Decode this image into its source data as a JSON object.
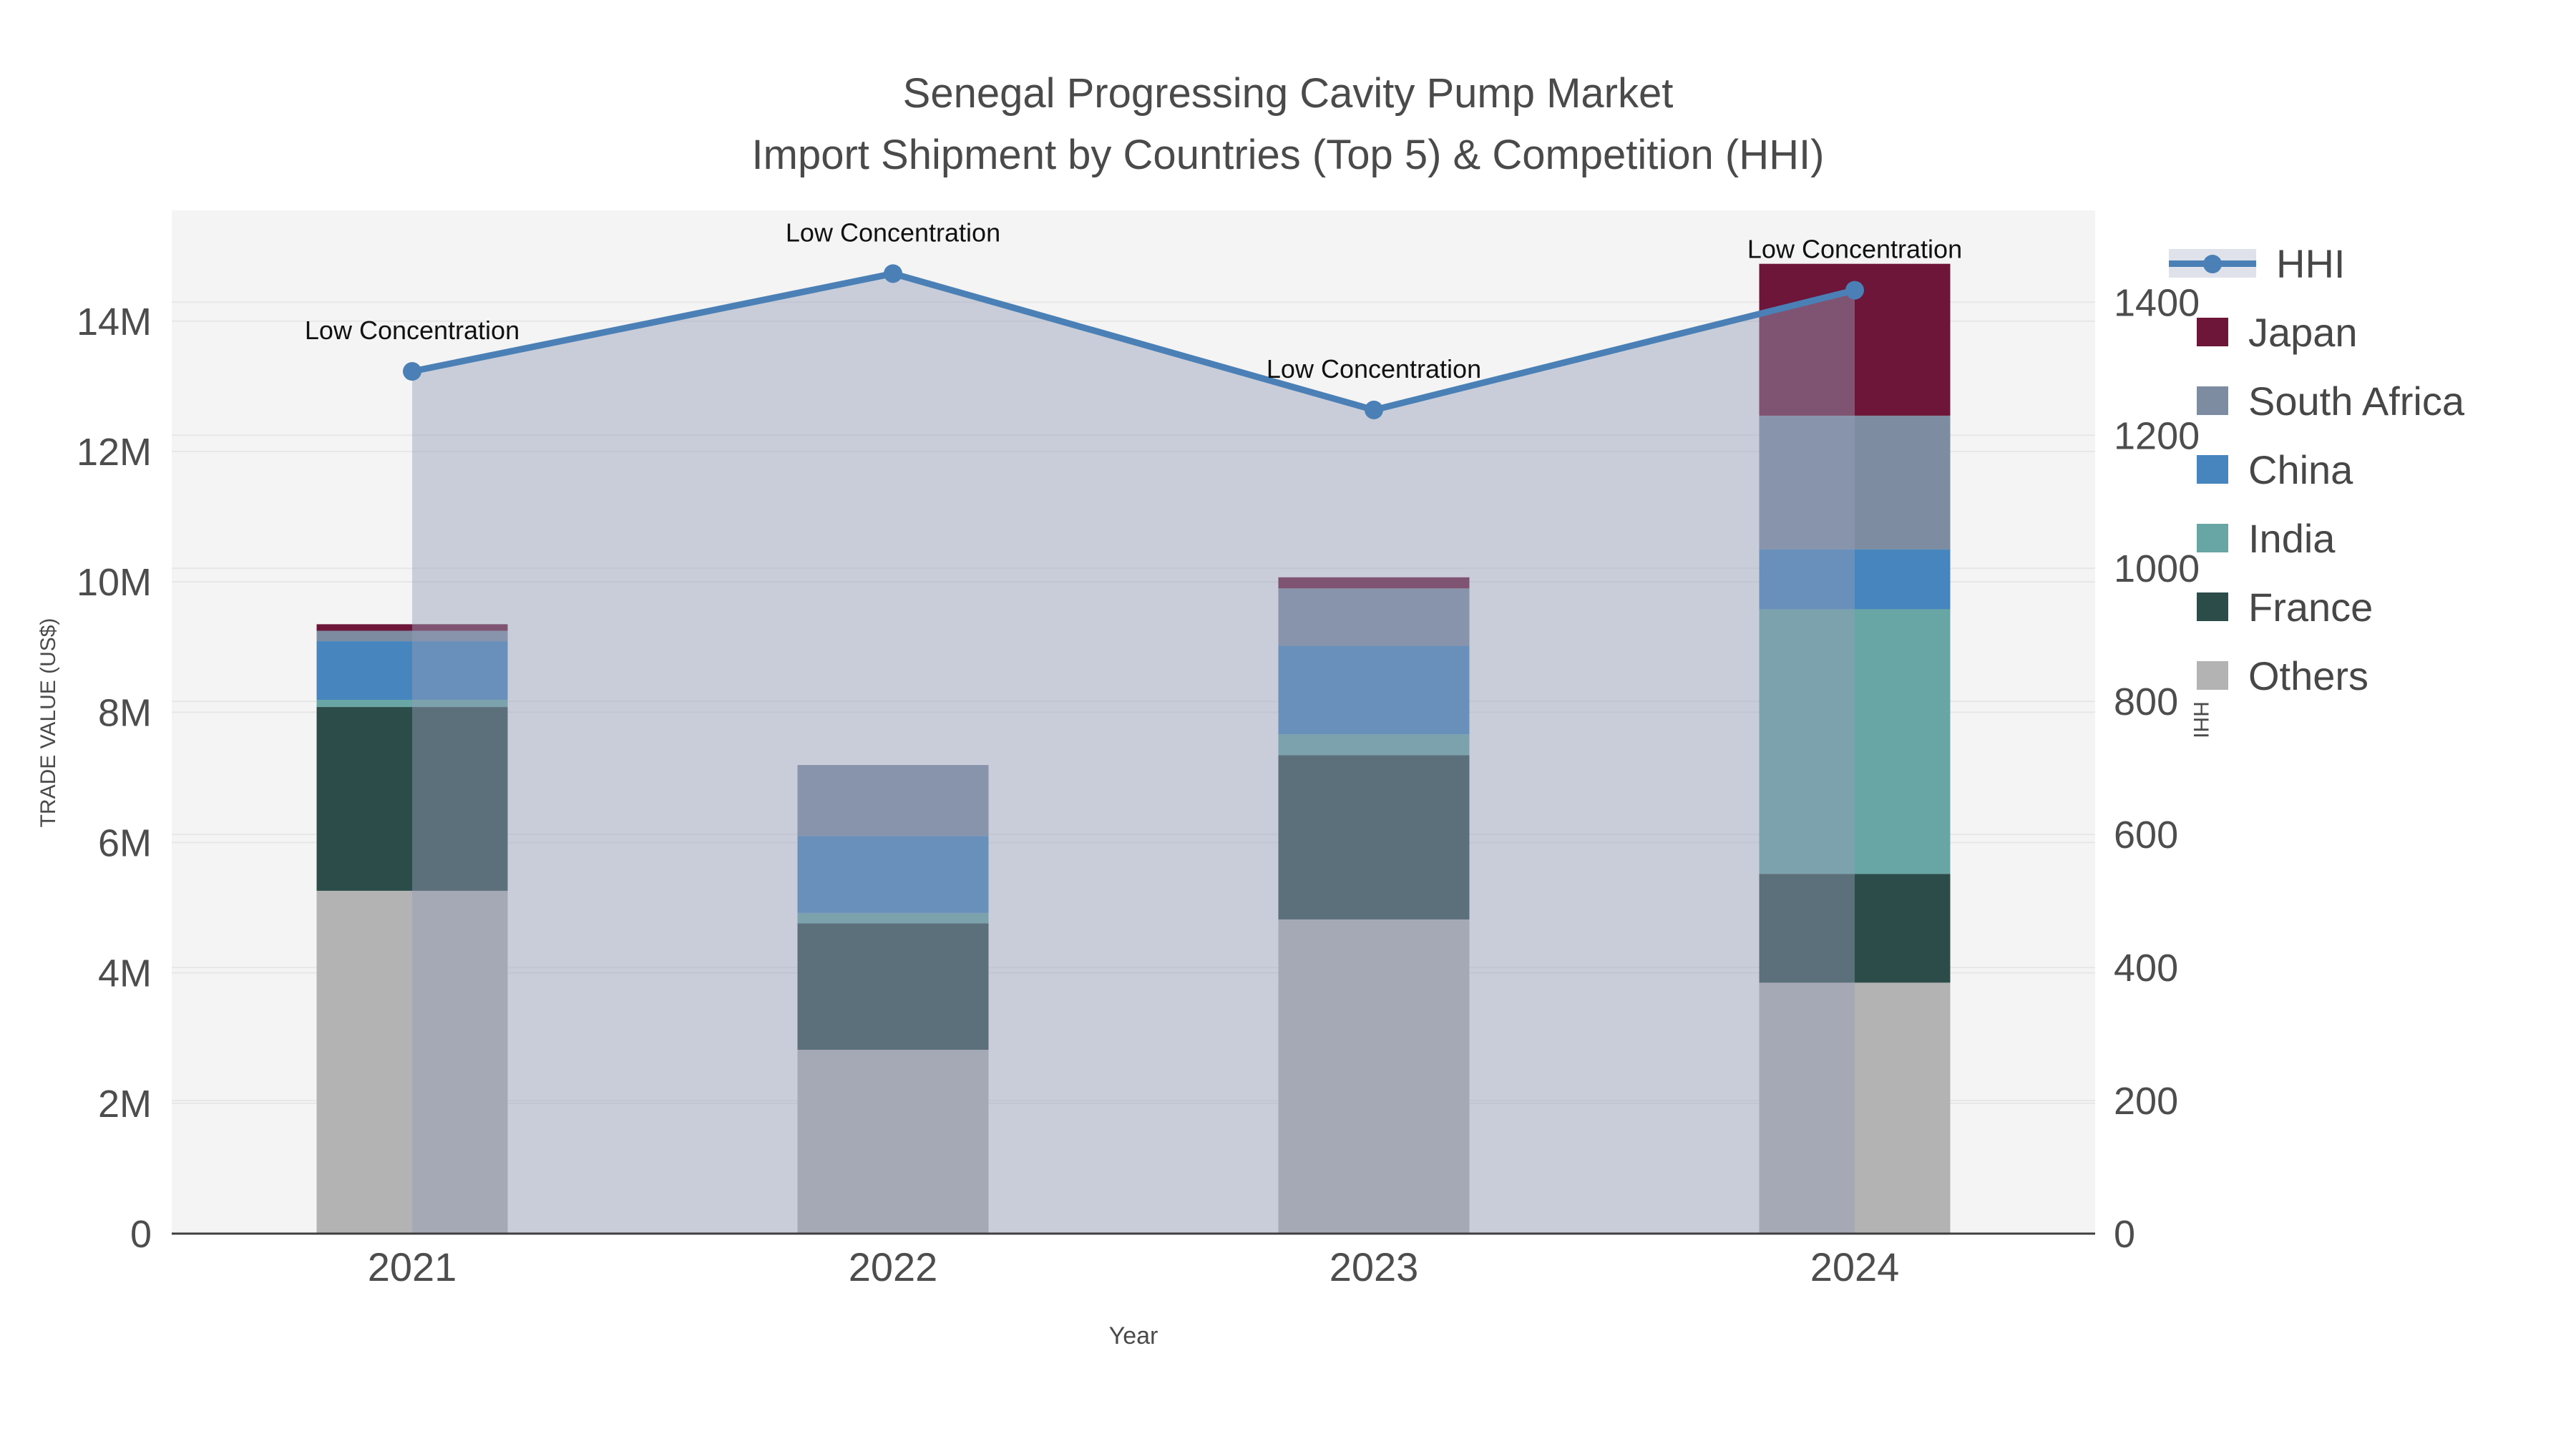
{
  "title": {
    "line1": "Senegal Progressing Cavity Pump Market",
    "line2": "Import Shipment by Countries (Top 5) & Competition (HHI)"
  },
  "axes": {
    "x": {
      "title": "Year",
      "categories": [
        "2021",
        "2022",
        "2023",
        "2024"
      ]
    },
    "y_left": {
      "title": "TRADE VALUE (US$)",
      "tick_labels": [
        "0",
        "2M",
        "4M",
        "6M",
        "8M",
        "10M",
        "12M",
        "14M"
      ],
      "tick_values": [
        0,
        2,
        4,
        6,
        8,
        10,
        12,
        14
      ],
      "range": [
        0,
        15.7
      ]
    },
    "y_right": {
      "title": "HHI",
      "tick_labels": [
        "0",
        "200",
        "400",
        "600",
        "800",
        "1000",
        "1200",
        "1400"
      ],
      "tick_values": [
        0,
        200,
        400,
        600,
        800,
        1000,
        1200,
        1400
      ],
      "range": [
        0,
        1538
      ]
    }
  },
  "chart_data": {
    "type": "bar+line",
    "categories": [
      "2021",
      "2022",
      "2023",
      "2024"
    ],
    "bar_unit": "US$ millions",
    "bar_series": [
      {
        "name": "Japan",
        "color": "#6d1639",
        "values_musd": [
          0.1,
          0.0,
          0.17,
          2.33
        ]
      },
      {
        "name": "South Africa",
        "color": "#7d8ca0",
        "values_musd": [
          0.16,
          1.09,
          0.88,
          2.05
        ]
      },
      {
        "name": "China",
        "color": "#4685bd",
        "values_musd": [
          0.9,
          1.18,
          1.36,
          0.92
        ]
      },
      {
        "name": "India",
        "color": "#67a6a4",
        "values_musd": [
          0.11,
          0.16,
          0.32,
          4.06
        ]
      },
      {
        "name": "France",
        "color": "#2c4c4a",
        "values_musd": [
          2.82,
          1.94,
          2.52,
          1.67
        ]
      },
      {
        "name": "Others",
        "color": "#b3b3b3",
        "values_musd": [
          5.26,
          2.82,
          4.82,
          3.85
        ]
      }
    ],
    "bar_totals_musd": [
      9.35,
      7.19,
      10.07,
      14.88
    ],
    "line_series": {
      "name": "HHI",
      "color": "#4a80b5",
      "area_fill": "rgba(148,158,184,0.45)",
      "axis": "right",
      "values": [
        1296,
        1443,
        1238,
        1418
      ]
    },
    "annotations": [
      {
        "label": "Low Concentration",
        "year": "2021"
      },
      {
        "label": "Low Concentration",
        "year": "2022"
      },
      {
        "label": "Low Concentration",
        "year": "2023"
      },
      {
        "label": "Low Concentration",
        "year": "2024"
      }
    ],
    "legend_position": "right",
    "grid": true,
    "plot_bg": "#f4f4f4",
    "grid_color": "#e7e7e7",
    "axis_line_color": "#3f3f3f",
    "tick_color": "#4d4d4d"
  }
}
